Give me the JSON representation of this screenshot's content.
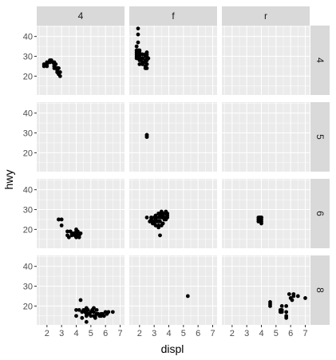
{
  "chart_data": {
    "type": "scatter",
    "xlabel": "displ",
    "ylabel": "hwy",
    "xlim": [
      1.3,
      7.3
    ],
    "ylim": [
      10.5,
      45.5
    ],
    "xticks": [
      "2",
      "3",
      "4",
      "5",
      "6",
      "7"
    ],
    "yticks": [
      "20",
      "30",
      "40"
    ],
    "col_labels": [
      "4",
      "f",
      "r"
    ],
    "row_labels": [
      "4",
      "5",
      "6",
      "8"
    ],
    "colors": {
      "panel": "#EBEBEB",
      "strip": "#D9D9D9",
      "point": "#000000",
      "axis_text": "#4D4D4D"
    },
    "panels": [
      {
        "row": "4",
        "col": "4",
        "points": [
          [
            1.8,
            26
          ],
          [
            1.8,
            25
          ],
          [
            2.0,
            25
          ],
          [
            2.0,
            27
          ],
          [
            2.2,
            28
          ],
          [
            2.4,
            27
          ],
          [
            2.5,
            26
          ],
          [
            2.5,
            26
          ],
          [
            2.5,
            27
          ],
          [
            2.5,
            25
          ],
          [
            2.5,
            24
          ],
          [
            2.5,
            25
          ],
          [
            2.7,
            24
          ],
          [
            2.7,
            24
          ],
          [
            2.7,
            22
          ],
          [
            2.7,
            23
          ],
          [
            2.9,
            22
          ],
          [
            2.9,
            20
          ],
          [
            2.8,
            21
          ],
          [
            2.8,
            24
          ],
          [
            2.6,
            26
          ],
          [
            2.2,
            27
          ],
          [
            2.0,
            26
          ],
          [
            2.3,
            28
          ]
        ]
      },
      {
        "row": "4",
        "col": "f",
        "points": [
          [
            1.8,
            29
          ],
          [
            1.8,
            31
          ],
          [
            1.8,
            35
          ],
          [
            1.8,
            33
          ],
          [
            1.8,
            32
          ],
          [
            1.8,
            30
          ],
          [
            1.9,
            29
          ],
          [
            1.9,
            44
          ],
          [
            1.9,
            41
          ],
          [
            1.9,
            37
          ],
          [
            1.9,
            33
          ],
          [
            2.0,
            31
          ],
          [
            2.0,
            29
          ],
          [
            2.0,
            26
          ],
          [
            2.0,
            30
          ],
          [
            2.0,
            28
          ],
          [
            2.0,
            33
          ],
          [
            2.0,
            32
          ],
          [
            2.2,
            27
          ],
          [
            2.2,
            31
          ],
          [
            2.2,
            29
          ],
          [
            2.2,
            26
          ],
          [
            2.4,
            27
          ],
          [
            2.4,
            30
          ],
          [
            2.4,
            31
          ],
          [
            2.4,
            28
          ],
          [
            2.4,
            25
          ],
          [
            2.4,
            24
          ],
          [
            2.5,
            29
          ],
          [
            2.5,
            32
          ],
          [
            2.5,
            26
          ],
          [
            2.5,
            28
          ],
          [
            2.5,
            31
          ],
          [
            2.5,
            26
          ],
          [
            2.5,
            24
          ],
          [
            2.5,
            30
          ],
          [
            2.1,
            28
          ],
          [
            2.2,
            29
          ],
          [
            2.3,
            27
          ],
          [
            2.6,
            29
          ]
        ]
      },
      {
        "row": "5",
        "col": "f",
        "points": [
          [
            2.5,
            28
          ],
          [
            2.5,
            29
          ],
          [
            2.5,
            29
          ],
          [
            2.5,
            28
          ]
        ]
      },
      {
        "row": "6",
        "col": "4",
        "points": [
          [
            2.8,
            25
          ],
          [
            2.8,
            25
          ],
          [
            3.0,
            25
          ],
          [
            3.0,
            22
          ],
          [
            3.4,
            19
          ],
          [
            3.4,
            17
          ],
          [
            3.7,
            18
          ],
          [
            3.7,
            17
          ],
          [
            4.0,
            17
          ],
          [
            4.0,
            19
          ],
          [
            4.0,
            20
          ],
          [
            4.0,
            18
          ],
          [
            4.0,
            18
          ],
          [
            4.0,
            16
          ],
          [
            4.2,
            17
          ],
          [
            4.2,
            18
          ],
          [
            4.2,
            17
          ],
          [
            4.2,
            16
          ],
          [
            3.6,
            19
          ],
          [
            3.8,
            18
          ],
          [
            4.1,
            19
          ],
          [
            4.3,
            18
          ],
          [
            3.5,
            16
          ],
          [
            3.9,
            17
          ]
        ]
      },
      {
        "row": "6",
        "col": "f",
        "points": [
          [
            2.5,
            26
          ],
          [
            2.7,
            24
          ],
          [
            2.8,
            25
          ],
          [
            2.9,
            24
          ],
          [
            2.9,
            23
          ],
          [
            3.0,
            24
          ],
          [
            3.0,
            26
          ],
          [
            3.1,
            25
          ],
          [
            3.1,
            26
          ],
          [
            3.1,
            27
          ],
          [
            3.3,
            24
          ],
          [
            3.3,
            26
          ],
          [
            3.3,
            28
          ],
          [
            3.3,
            22
          ],
          [
            3.4,
            27
          ],
          [
            3.4,
            24
          ],
          [
            3.4,
            17
          ],
          [
            3.5,
            26
          ],
          [
            3.5,
            28
          ],
          [
            3.5,
            29
          ],
          [
            3.5,
            27
          ],
          [
            3.6,
            28
          ],
          [
            3.6,
            26
          ],
          [
            3.6,
            27
          ],
          [
            3.8,
            28
          ],
          [
            3.8,
            26
          ],
          [
            3.8,
            25
          ],
          [
            3.8,
            29
          ],
          [
            3.9,
            27
          ],
          [
            3.9,
            26
          ],
          [
            3.3,
            21
          ],
          [
            3.1,
            22
          ],
          [
            3.0,
            23
          ],
          [
            3.5,
            22
          ],
          [
            3.7,
            25
          ],
          [
            2.8,
            26
          ],
          [
            3.2,
            24
          ],
          [
            3.6,
            23
          ],
          [
            3.4,
            26
          ],
          [
            3.9,
            28
          ]
        ]
      },
      {
        "row": "6",
        "col": "r",
        "points": [
          [
            3.8,
            26
          ],
          [
            3.8,
            25
          ],
          [
            3.8,
            24
          ],
          [
            3.9,
            26
          ],
          [
            3.9,
            25
          ],
          [
            3.9,
            24
          ],
          [
            4.0,
            26
          ],
          [
            4.0,
            25
          ],
          [
            4.0,
            24
          ],
          [
            4.0,
            23
          ],
          [
            4.0,
            26
          ],
          [
            3.9,
            26
          ]
        ]
      },
      {
        "row": "8",
        "col": "4",
        "points": [
          [
            4.0,
            18
          ],
          [
            4.2,
            18
          ],
          [
            4.3,
            23
          ],
          [
            4.4,
            17
          ],
          [
            4.6,
            17
          ],
          [
            4.6,
            18
          ],
          [
            4.7,
            15
          ],
          [
            4.7,
            17
          ],
          [
            4.7,
            19
          ],
          [
            4.7,
            18
          ],
          [
            4.7,
            12
          ],
          [
            4.7,
            16
          ],
          [
            4.8,
            16
          ],
          [
            4.8,
            18
          ],
          [
            5.0,
            17
          ],
          [
            5.0,
            15
          ],
          [
            5.2,
            17
          ],
          [
            5.2,
            19
          ],
          [
            5.3,
            14
          ],
          [
            5.3,
            15
          ],
          [
            5.4,
            16
          ],
          [
            5.4,
            18
          ],
          [
            5.6,
            15
          ],
          [
            5.7,
            16
          ],
          [
            5.7,
            15
          ],
          [
            5.9,
            15
          ],
          [
            6.0,
            17
          ],
          [
            6.1,
            16
          ],
          [
            6.2,
            17
          ],
          [
            6.5,
            17
          ],
          [
            4.4,
            14
          ],
          [
            5.5,
            16
          ],
          [
            4.9,
            16
          ],
          [
            5.8,
            16
          ],
          [
            5.2,
            15
          ],
          [
            4.0,
            15
          ],
          [
            4.5,
            18
          ],
          [
            5.1,
            18
          ]
        ]
      },
      {
        "row": "8",
        "col": "f",
        "points": [
          [
            5.3,
            25
          ]
        ]
      },
      {
        "row": "8",
        "col": "r",
        "points": [
          [
            4.6,
            20
          ],
          [
            4.6,
            22
          ],
          [
            4.6,
            21
          ],
          [
            5.4,
            18
          ],
          [
            5.4,
            20
          ],
          [
            5.4,
            17
          ],
          [
            5.7,
            20
          ],
          [
            5.7,
            17
          ],
          [
            5.7,
            15
          ],
          [
            5.7,
            14
          ],
          [
            5.9,
            26
          ],
          [
            6.0,
            24
          ],
          [
            6.1,
            23
          ],
          [
            6.2,
            26
          ],
          [
            6.2,
            25
          ],
          [
            6.5,
            25
          ],
          [
            7.0,
            24
          ],
          [
            5.3,
            17
          ],
          [
            5.3,
            18
          ]
        ]
      }
    ]
  }
}
